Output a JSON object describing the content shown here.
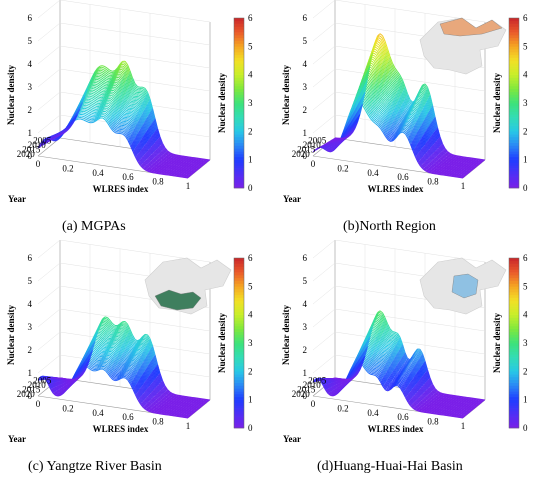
{
  "figure": {
    "colorbar_colors": [
      "#7a1fe8",
      "#4f2ff5",
      "#1f3cff",
      "#2a86f5",
      "#28c8e6",
      "#33dcb5",
      "#3de27a",
      "#7fe83d",
      "#c8ee2a",
      "#f2e025",
      "#f5a623",
      "#ea5a2a",
      "#c9262a"
    ],
    "map_highlight_colors": {
      "b": "#e8a87c",
      "c": "#3f7f5e",
      "d": "#8fc1e3"
    },
    "map_base_color": "#e6e6e6"
  },
  "chart_data": [
    {
      "panel": "a",
      "caption": "(a) MGPAs",
      "type": "surface",
      "zlabel": "Nuclear density",
      "xlabel": "WLRES index",
      "ylabel": "Year",
      "colorbar_label": "Nuclear density",
      "zlim": [
        0,
        6
      ],
      "z_ticks": [
        "0",
        "1",
        "2",
        "3",
        "4",
        "5",
        "6"
      ],
      "x_ticks": [
        "0",
        "0.2",
        "0.4",
        "0.6",
        "0.8",
        "1"
      ],
      "year_ticks": [
        "2005",
        "2010",
        "2015",
        "2020"
      ],
      "colorbar_ticks": [
        "0",
        "1",
        "2",
        "3",
        "4",
        "5",
        "6"
      ],
      "has_map_inset": false,
      "profile": {
        "peaks": [
          [
            0.28,
            3.4,
            0.11
          ],
          [
            0.44,
            2.3,
            0.05
          ],
          [
            0.57,
            2.5,
            0.06
          ]
        ],
        "front_peak": [
          0.05,
          0.6,
          0.04
        ],
        "years": [
          2003,
          2020
        ]
      }
    },
    {
      "panel": "b",
      "caption": "(b)North Region",
      "type": "surface",
      "zlabel": "Nuclear density",
      "xlabel": "WLRES index",
      "ylabel": "Year",
      "colorbar_label": "Nuclear density",
      "zlim": [
        0,
        6
      ],
      "z_ticks": [
        "0",
        "1",
        "2",
        "3",
        "4",
        "5",
        "6"
      ],
      "x_ticks": [
        "0",
        "0.2",
        "0.4",
        "0.6",
        "0.8",
        "1"
      ],
      "year_ticks": [
        "2005",
        "2010",
        "2015",
        "2020"
      ],
      "colorbar_ticks": [
        "0",
        "1",
        "2",
        "3",
        "4",
        "5",
        "6"
      ],
      "has_map_inset": true,
      "profile": {
        "peaks": [
          [
            0.3,
            4.8,
            0.08
          ],
          [
            0.45,
            2.0,
            0.05
          ],
          [
            0.6,
            2.9,
            0.06
          ]
        ],
        "front_peak": [
          0.05,
          0.4,
          0.04
        ],
        "years": [
          2003,
          2020
        ]
      }
    },
    {
      "panel": "c",
      "caption": "(c) Yangtze River Basin",
      "type": "surface",
      "zlabel": "Nuclear density",
      "xlabel": "WLRES index",
      "ylabel": "Year",
      "colorbar_label": "Nuclear density",
      "zlim": [
        0,
        6
      ],
      "z_ticks": [
        "0",
        "1",
        "2",
        "3",
        "4",
        "5",
        "6"
      ],
      "x_ticks": [
        "0",
        "0.2",
        "0.4",
        "0.6",
        "0.8",
        "1"
      ],
      "year_ticks": [
        "2005",
        "2010",
        "2015",
        "2020"
      ],
      "colorbar_ticks": [
        "0",
        "1",
        "2",
        "3",
        "4",
        "5",
        "6"
      ],
      "has_map_inset": true,
      "profile": {
        "peaks": [
          [
            0.3,
            2.9,
            0.07
          ],
          [
            0.44,
            2.3,
            0.05
          ],
          [
            0.58,
            2.4,
            0.06
          ]
        ],
        "front_peak": [
          0.03,
          0.9,
          0.04
        ],
        "years": [
          2003,
          2020
        ]
      }
    },
    {
      "panel": "d",
      "caption": "(d)Huang-Huai-Hai Basin",
      "type": "surface",
      "zlabel": "Nuclear density",
      "xlabel": "WLRES index",
      "ylabel": "Year",
      "colorbar_label": "Nuclear density",
      "zlim": [
        0,
        6
      ],
      "z_ticks": [
        "0",
        "1",
        "2",
        "3",
        "4",
        "5",
        "6"
      ],
      "x_ticks": [
        "0",
        "0.2",
        "0.4",
        "0.6",
        "0.8",
        "1"
      ],
      "year_ticks": [
        "2005",
        "2010",
        "2015",
        "2020"
      ],
      "colorbar_ticks": [
        "0",
        "1",
        "2",
        "3",
        "4",
        "5",
        "6"
      ],
      "has_map_inset": true,
      "profile": {
        "peaks": [
          [
            0.3,
            3.2,
            0.07
          ],
          [
            0.43,
            1.6,
            0.04
          ],
          [
            0.56,
            1.8,
            0.05
          ]
        ],
        "front_peak": [
          0.03,
          0.8,
          0.04
        ],
        "years": [
          2003,
          2020
        ]
      }
    }
  ]
}
